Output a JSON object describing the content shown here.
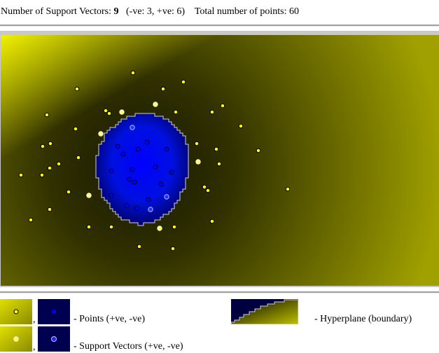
{
  "header": {
    "sv_label": "Number of Support Vectors:",
    "sv_count": "9",
    "sv_breakdown": "(-ve: 3, +ve: 6)",
    "total_label": "Total number of points:",
    "total_count": "60"
  },
  "colors": {
    "positive": "#ffff00",
    "negative": "#0000ff",
    "boundary": "#d0d0d0",
    "background_dark": "#262600",
    "background_bright": "#f0f000"
  },
  "chart_data": {
    "type": "scatter",
    "positive_points": [
      [
        190,
        104
      ],
      [
        262,
        117
      ],
      [
        110,
        127
      ],
      [
        233,
        127
      ],
      [
        318,
        151
      ],
      [
        151,
        158
      ],
      [
        156,
        162
      ],
      [
        251,
        160
      ],
      [
        303,
        160
      ],
      [
        67,
        164
      ],
      [
        344,
        180
      ],
      [
        108,
        184
      ],
      [
        72,
        205
      ],
      [
        61,
        209
      ],
      [
        281,
        205
      ],
      [
        309,
        213
      ],
      [
        369,
        215
      ],
      [
        112,
        225
      ],
      [
        84,
        234
      ],
      [
        71,
        240
      ],
      [
        313,
        234
      ],
      [
        30,
        250
      ],
      [
        60,
        250
      ],
      [
        98,
        274
      ],
      [
        292,
        267
      ],
      [
        297,
        272
      ],
      [
        411,
        270
      ],
      [
        71,
        299
      ],
      [
        44,
        314
      ],
      [
        127,
        324
      ],
      [
        159,
        324
      ],
      [
        249,
        324
      ],
      [
        303,
        316
      ],
      [
        199,
        352
      ],
      [
        247,
        355
      ]
    ],
    "positive_support_vectors": [
      [
        222,
        149
      ],
      [
        174,
        160
      ],
      [
        144,
        191
      ],
      [
        283,
        231
      ],
      [
        127,
        279
      ],
      [
        228,
        326
      ]
    ],
    "negative_points": [
      [
        210,
        203
      ],
      [
        168,
        209
      ],
      [
        197,
        213
      ],
      [
        238,
        213
      ],
      [
        176,
        220
      ],
      [
        222,
        238
      ],
      [
        159,
        244
      ],
      [
        189,
        242
      ],
      [
        245,
        246
      ],
      [
        185,
        256
      ],
      [
        192,
        260
      ],
      [
        230,
        263
      ],
      [
        159,
        279
      ],
      [
        212,
        285
      ],
      [
        181,
        294
      ],
      [
        195,
        297
      ]
    ],
    "negative_support_vectors": [
      [
        189,
        182
      ],
      [
        238,
        281
      ],
      [
        215,
        299
      ]
    ]
  },
  "legend": {
    "points_label": "- Points (+ve, -ve)",
    "sv_label": "- Support Vectors (+ve, -ve)",
    "hyperplane_label": "- Hyperplane (boundary)",
    "comma": ","
  }
}
